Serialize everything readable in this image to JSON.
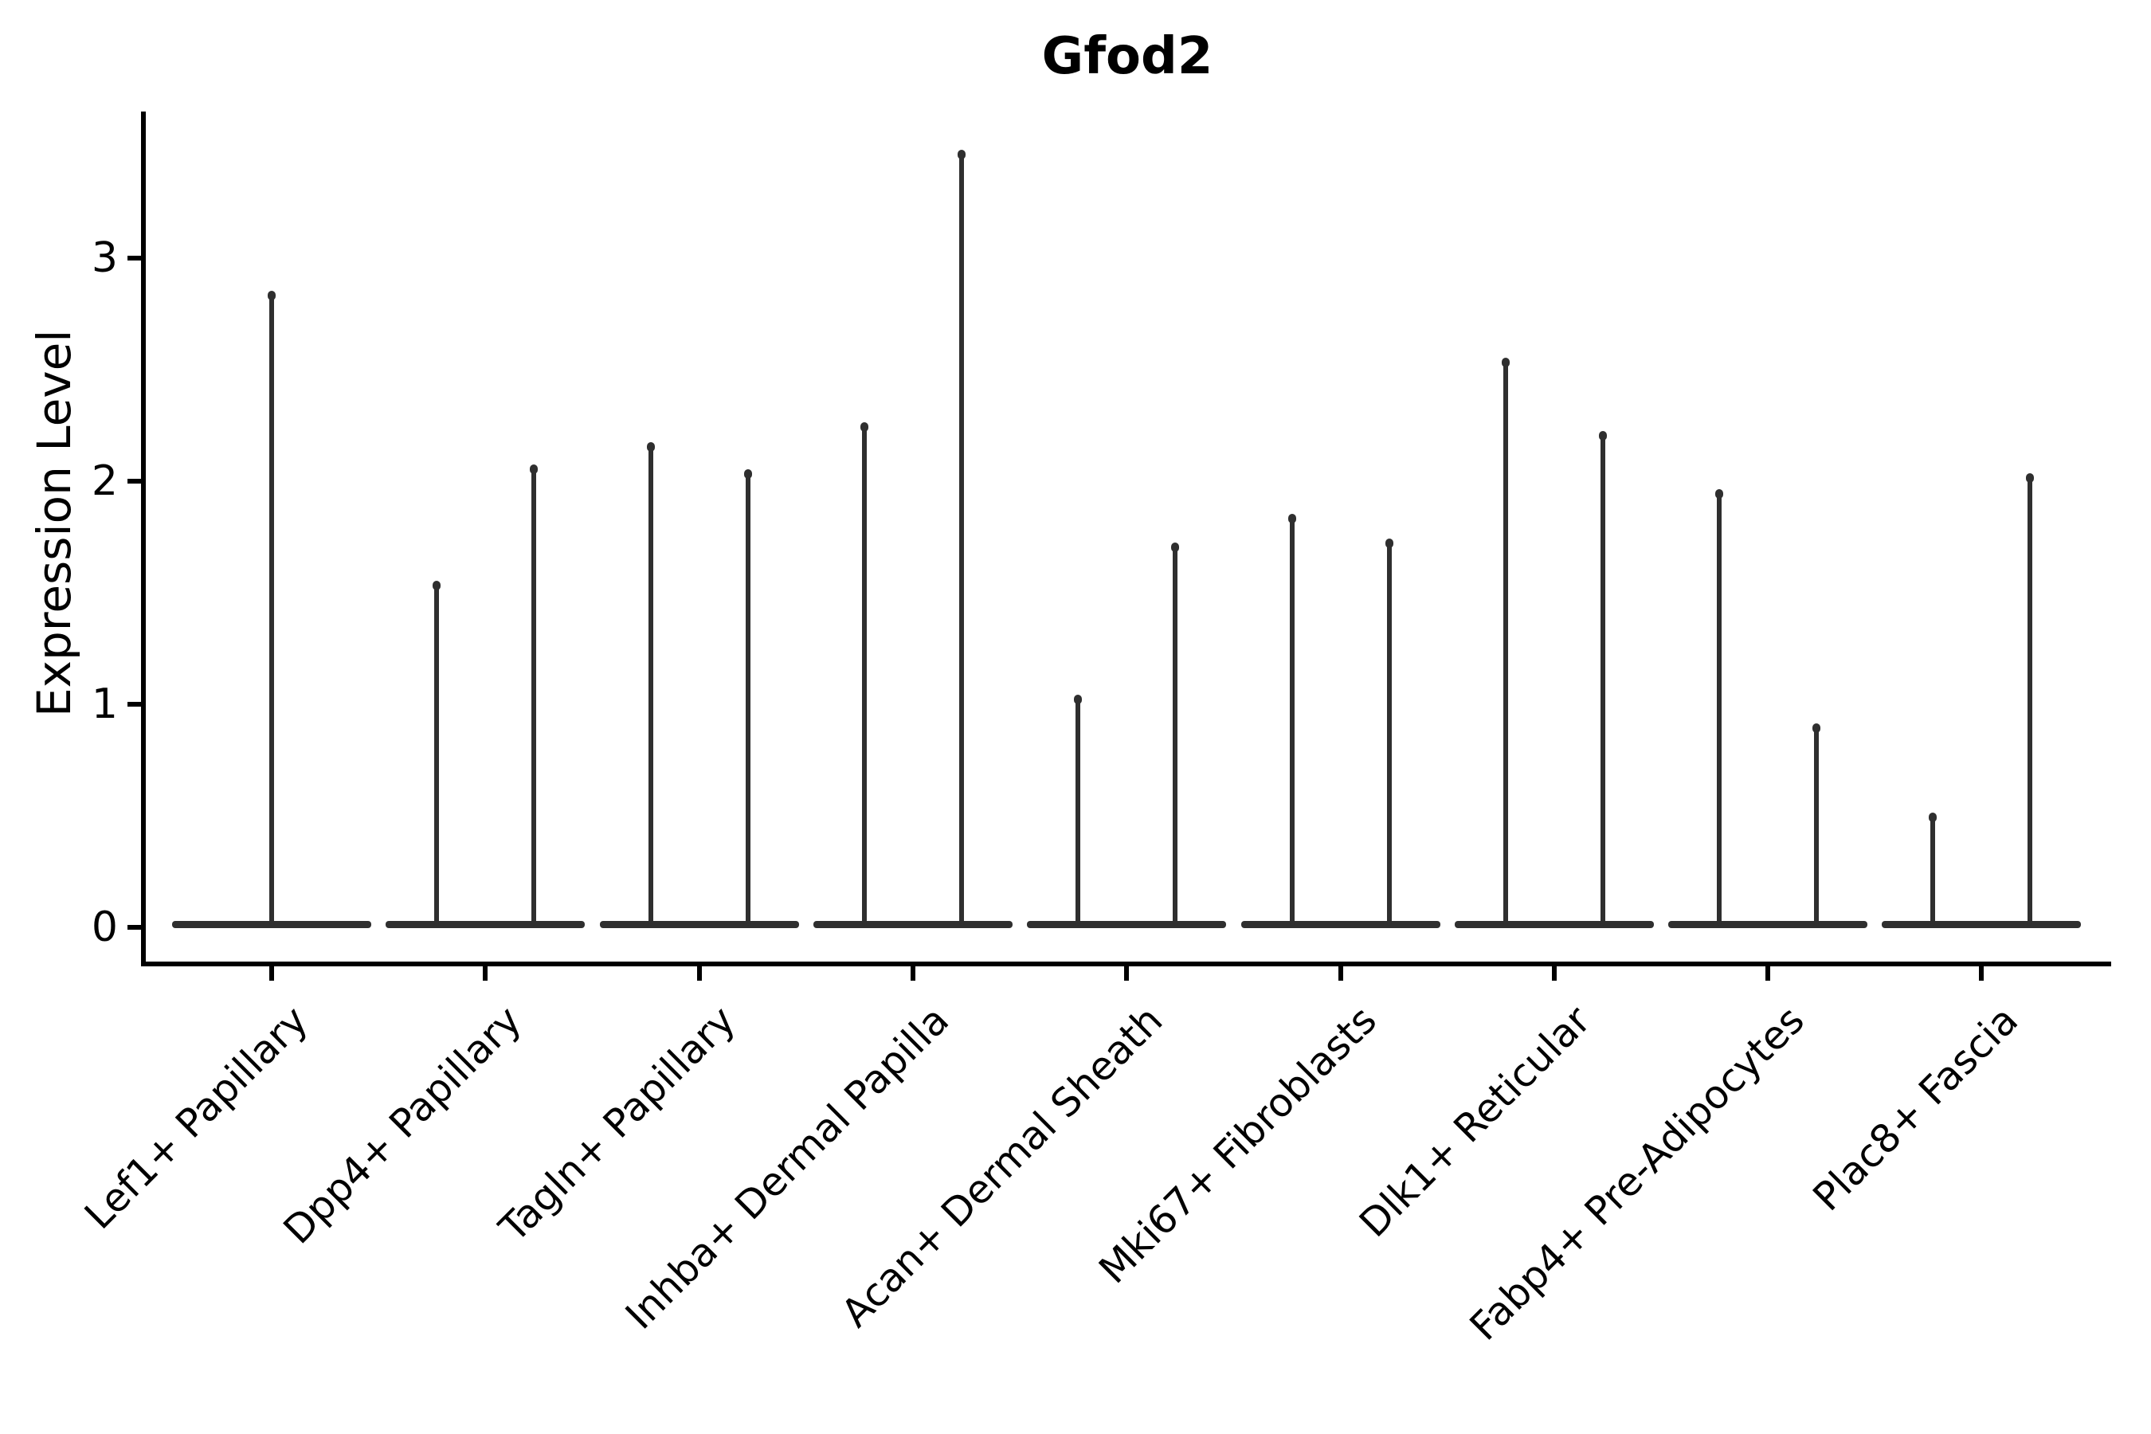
{
  "chart_data": {
    "type": "violin",
    "title": "Gfod2",
    "ylabel": "Expression Level",
    "xlabel": "",
    "ytick_values": [
      0,
      1,
      2,
      3
    ],
    "ytick_labels": [
      "0",
      "1",
      "2",
      "3"
    ],
    "ylim": [
      -0.17,
      3.66
    ],
    "grid": false,
    "legend": "none",
    "x_label_rotation_deg": 45,
    "categories": [
      "Lef1+ Papillary",
      "Dpp4+ Papillary",
      "Tagln+ Papillary",
      "Inhba+ Dermal Papilla",
      "Acan+ Dermal Sheath",
      "Mki67+ Fibroblasts",
      "Dlk1+ Reticular",
      "Fabp4+ Pre-Adipocytes",
      "Plac8+ Fascia"
    ],
    "violins": [
      {
        "category": "Lef1+ Papillary",
        "group_max_expression": [
          2.84
        ]
      },
      {
        "category": "Dpp4+ Papillary",
        "group_max_expression": [
          1.54,
          2.06
        ]
      },
      {
        "category": "Tagln+ Papillary",
        "group_max_expression": [
          2.16,
          2.04
        ]
      },
      {
        "category": "Inhba+ Dermal Papilla",
        "group_max_expression": [
          2.25,
          3.47
        ]
      },
      {
        "category": "Acan+ Dermal Sheath",
        "group_max_expression": [
          1.03,
          1.71
        ]
      },
      {
        "category": "Mki67+ Fibroblasts",
        "group_max_expression": [
          1.84,
          1.73
        ]
      },
      {
        "category": "Dlk1+ Reticular",
        "group_max_expression": [
          2.54,
          2.21
        ]
      },
      {
        "category": "Fabp4+ Pre-Adipocytes",
        "group_max_expression": [
          1.95,
          0.9
        ]
      },
      {
        "category": "Plac8+ Fascia",
        "group_max_expression": [
          0.5,
          2.02
        ]
      }
    ],
    "colors": {
      "violin_line": "#2f2f2f",
      "axis": "#000000",
      "text": "#000000",
      "background": "#ffffff"
    }
  }
}
